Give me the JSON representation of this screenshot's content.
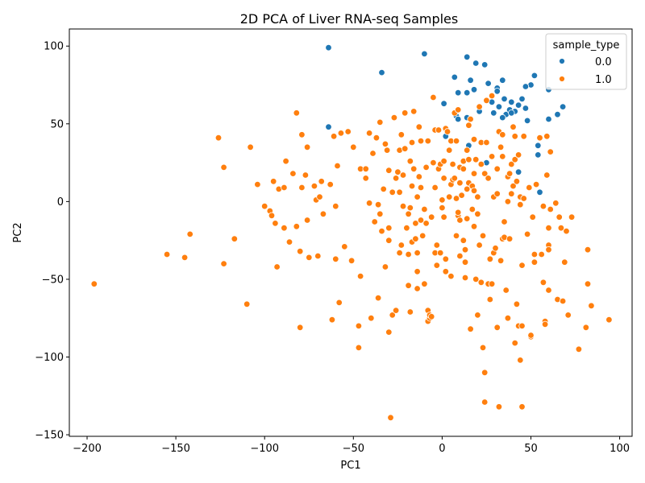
{
  "chart_data": {
    "type": "scatter",
    "title": "2D PCA of Liver RNA-seq Samples",
    "xlabel": "PC1",
    "ylabel": "PC2",
    "xlim": [
      -210,
      107
    ],
    "ylim": [
      -151,
      111
    ],
    "xticks": [
      -200,
      -150,
      -100,
      -50,
      0,
      50,
      100
    ],
    "yticks": [
      -150,
      -100,
      -50,
      0,
      50,
      100
    ],
    "grid": false,
    "legend": {
      "title": "sample_type",
      "placement": "top-right",
      "entries": [
        "0.0",
        "1.0"
      ]
    },
    "series": [
      {
        "name": "0.0",
        "color": "#1f77b4",
        "points": [
          [
            -64,
            99
          ],
          [
            -10,
            95
          ],
          [
            14,
            93
          ],
          [
            19,
            89
          ],
          [
            24,
            88
          ],
          [
            -34,
            83
          ],
          [
            52,
            81
          ],
          [
            16,
            78
          ],
          [
            34,
            78
          ],
          [
            7,
            80
          ],
          [
            50,
            75
          ],
          [
            60,
            72
          ],
          [
            26,
            76
          ],
          [
            31,
            73
          ],
          [
            47,
            74
          ],
          [
            14,
            70
          ],
          [
            18,
            72
          ],
          [
            9,
            70
          ],
          [
            31,
            71
          ],
          [
            45,
            66
          ],
          [
            35,
            66
          ],
          [
            39,
            64
          ],
          [
            28,
            64
          ],
          [
            68,
            61
          ],
          [
            1,
            63
          ],
          [
            43,
            62
          ],
          [
            47,
            60
          ],
          [
            32,
            61
          ],
          [
            29,
            57
          ],
          [
            36,
            56
          ],
          [
            38,
            59
          ],
          [
            41,
            58
          ],
          [
            39,
            57
          ],
          [
            21,
            58
          ],
          [
            8,
            55
          ],
          [
            65,
            56
          ],
          [
            9,
            53
          ],
          [
            14,
            54
          ],
          [
            34,
            54
          ],
          [
            48,
            52
          ],
          [
            60,
            53
          ],
          [
            -64,
            48
          ],
          [
            2,
            42
          ],
          [
            54,
            36
          ],
          [
            15,
            36
          ],
          [
            54,
            30
          ],
          [
            25,
            25
          ],
          [
            43,
            19
          ],
          [
            55,
            6
          ]
        ]
      },
      {
        "name": "1.0",
        "color": "#ff7f0e",
        "points": [
          [
            -196,
            -53
          ],
          [
            -155,
            -34
          ],
          [
            -145,
            -36
          ],
          [
            -142,
            -21
          ],
          [
            -126,
            41
          ],
          [
            -123,
            22
          ],
          [
            -123,
            -40
          ],
          [
            -117,
            -24
          ],
          [
            -110,
            -66
          ],
          [
            -108,
            35
          ],
          [
            -104,
            11
          ],
          [
            -100,
            -3
          ],
          [
            -97,
            -6
          ],
          [
            -96,
            -9
          ],
          [
            -95,
            13
          ],
          [
            -94,
            -14
          ],
          [
            -93,
            -42
          ],
          [
            -92,
            8
          ],
          [
            -89,
            9
          ],
          [
            -89,
            -17
          ],
          [
            -88,
            26
          ],
          [
            -86,
            -26
          ],
          [
            -84,
            18
          ],
          [
            -82,
            57
          ],
          [
            -82,
            -16
          ],
          [
            -80,
            -32
          ],
          [
            -80,
            -81
          ],
          [
            -79,
            43
          ],
          [
            -79,
            9
          ],
          [
            -77,
            17
          ],
          [
            -76,
            -12
          ],
          [
            -76,
            35
          ],
          [
            -75,
            -36
          ],
          [
            -72,
            10
          ],
          [
            -71,
            1
          ],
          [
            -70,
            -35
          ],
          [
            -69,
            3
          ],
          [
            -68,
            13
          ],
          [
            -67,
            -8
          ],
          [
            -63,
            11
          ],
          [
            -62,
            -76
          ],
          [
            -61,
            42
          ],
          [
            -60,
            -37
          ],
          [
            -60,
            -3
          ],
          [
            -59,
            23
          ],
          [
            -58,
            -65
          ],
          [
            -57,
            44
          ],
          [
            -55,
            -29
          ],
          [
            -53,
            45
          ],
          [
            -51,
            -38
          ],
          [
            -50,
            35
          ],
          [
            -47,
            -94
          ],
          [
            -47,
            -80
          ],
          [
            -46,
            21
          ],
          [
            -46,
            -48
          ],
          [
            -43,
            21
          ],
          [
            -43,
            15
          ],
          [
            -41,
            -1
          ],
          [
            -41,
            44
          ],
          [
            -40,
            -75
          ],
          [
            -39,
            31
          ],
          [
            -38,
            -13
          ],
          [
            -37,
            41
          ],
          [
            -36,
            -62
          ],
          [
            -36,
            -2
          ],
          [
            -35,
            51
          ],
          [
            -35,
            -8
          ],
          [
            -34,
            -19
          ],
          [
            -33,
            8
          ],
          [
            -32,
            37
          ],
          [
            -32,
            -42
          ],
          [
            -31,
            33
          ],
          [
            -30,
            20
          ],
          [
            -30,
            -25
          ],
          [
            -30,
            -17
          ],
          [
            -30,
            -84
          ],
          [
            -29,
            -139
          ],
          [
            -28,
            -73
          ],
          [
            -28,
            6
          ],
          [
            -27,
            54
          ],
          [
            -26,
            15
          ],
          [
            -26,
            -70
          ],
          [
            -25,
            19
          ],
          [
            -24,
            33
          ],
          [
            -24,
            6
          ],
          [
            -24,
            -33
          ],
          [
            -23,
            43
          ],
          [
            -23,
            -28
          ],
          [
            -22,
            17
          ],
          [
            -22,
            -3
          ],
          [
            -21,
            57
          ],
          [
            -21,
            34
          ],
          [
            -20,
            -17
          ],
          [
            -19,
            -34
          ],
          [
            -19,
            -8
          ],
          [
            -19,
            -54
          ],
          [
            -18,
            -4
          ],
          [
            -18,
            26
          ],
          [
            -18,
            -71
          ],
          [
            -17,
            -26
          ],
          [
            -17,
            38
          ],
          [
            -17,
            10
          ],
          [
            -16,
            21
          ],
          [
            -16,
            58
          ],
          [
            -15,
            -14
          ],
          [
            -15,
            -24
          ],
          [
            -14,
            3
          ],
          [
            -14,
            -33
          ],
          [
            -14,
            -45
          ],
          [
            -14,
            -56
          ],
          [
            -13,
            16
          ],
          [
            -13,
            48
          ],
          [
            -12,
            39
          ],
          [
            -12,
            -12
          ],
          [
            -12,
            9
          ],
          [
            -11,
            -22
          ],
          [
            -10,
            -53
          ],
          [
            -10,
            -5
          ],
          [
            -9,
            -14
          ],
          [
            -9,
            22
          ],
          [
            -8,
            -70
          ],
          [
            -8,
            39
          ],
          [
            -8,
            -77
          ],
          [
            -7,
            -75
          ],
          [
            -7,
            -73
          ],
          [
            -6,
            -74
          ],
          [
            -6,
            -10
          ],
          [
            -5,
            67
          ],
          [
            -5,
            25
          ],
          [
            -4,
            9
          ],
          [
            -4,
            46
          ],
          [
            -4,
            -33
          ],
          [
            -3,
            -41
          ],
          [
            -3,
            -28
          ],
          [
            -2,
            21
          ],
          [
            -2,
            46
          ],
          [
            -1,
            -33
          ],
          [
            -1,
            24
          ],
          [
            0,
            -4
          ],
          [
            0,
            1
          ],
          [
            1,
            -10
          ],
          [
            1,
            26
          ],
          [
            1,
            15
          ],
          [
            2,
            -45
          ],
          [
            2,
            -37
          ],
          [
            2,
            47
          ],
          [
            3,
            45
          ],
          [
            4,
            3
          ],
          [
            4,
            33
          ],
          [
            5,
            39
          ],
          [
            5,
            -48
          ],
          [
            5,
            11
          ],
          [
            6,
            24
          ],
          [
            6,
            14
          ],
          [
            7,
            15
          ],
          [
            7,
            57
          ],
          [
            8,
            -22
          ],
          [
            8,
            39
          ],
          [
            8,
            2
          ],
          [
            9,
            -9
          ],
          [
            9,
            -7
          ],
          [
            9,
            59
          ],
          [
            10,
            -35
          ],
          [
            10,
            12
          ],
          [
            10,
            22
          ],
          [
            10,
            -12
          ],
          [
            11,
            4
          ],
          [
            12,
            -25
          ],
          [
            12,
            26
          ],
          [
            12,
            21
          ],
          [
            13,
            -31
          ],
          [
            13,
            -49
          ],
          [
            13,
            -39
          ],
          [
            14,
            33
          ],
          [
            14,
            8
          ],
          [
            14,
            -11
          ],
          [
            15,
            12
          ],
          [
            15,
            49
          ],
          [
            15,
            27
          ],
          [
            16,
            53
          ],
          [
            16,
            -82
          ],
          [
            17,
            10
          ],
          [
            17,
            -5
          ],
          [
            18,
            40
          ],
          [
            18,
            7
          ],
          [
            18,
            -16
          ],
          [
            18,
            18
          ],
          [
            19,
            27
          ],
          [
            19,
            -50
          ],
          [
            20,
            -73
          ],
          [
            20,
            -8
          ],
          [
            20,
            3
          ],
          [
            21,
            61
          ],
          [
            21,
            -28
          ],
          [
            22,
            24
          ],
          [
            22,
            -52
          ],
          [
            22,
            38
          ],
          [
            23,
            -94
          ],
          [
            23,
            -22
          ],
          [
            24,
            -110
          ],
          [
            24,
            18
          ],
          [
            24,
            -129
          ],
          [
            25,
            38
          ],
          [
            25,
            65
          ],
          [
            26,
            15
          ],
          [
            26,
            -53
          ],
          [
            27,
            -37
          ],
          [
            27,
            -63
          ],
          [
            28,
            68
          ],
          [
            28,
            29
          ],
          [
            28,
            -53
          ],
          [
            29,
            3
          ],
          [
            29,
            -33
          ],
          [
            30,
            -30
          ],
          [
            31,
            21
          ],
          [
            31,
            -81
          ],
          [
            31,
            5
          ],
          [
            32,
            -132
          ],
          [
            32,
            45
          ],
          [
            33,
            -38
          ],
          [
            33,
            35
          ],
          [
            34,
            29
          ],
          [
            34,
            43
          ],
          [
            34,
            -24
          ],
          [
            35,
            -13
          ],
          [
            35,
            -23
          ],
          [
            36,
            -57
          ],
          [
            37,
            0
          ],
          [
            37,
            16
          ],
          [
            37,
            -75
          ],
          [
            38,
            18
          ],
          [
            38,
            -24
          ],
          [
            39,
            5
          ],
          [
            39,
            24
          ],
          [
            40,
            10
          ],
          [
            40,
            48
          ],
          [
            41,
            -91
          ],
          [
            41,
            42
          ],
          [
            41,
            27
          ],
          [
            42,
            13
          ],
          [
            42,
            -66
          ],
          [
            43,
            30
          ],
          [
            43,
            -80
          ],
          [
            44,
            -2
          ],
          [
            44,
            -102
          ],
          [
            44,
            3
          ],
          [
            45,
            -41
          ],
          [
            45,
            -132
          ],
          [
            45,
            -80
          ],
          [
            46,
            42
          ],
          [
            46,
            2
          ],
          [
            48,
            -21
          ],
          [
            49,
            9
          ],
          [
            50,
            -87
          ],
          [
            50,
            -86
          ],
          [
            51,
            -10
          ],
          [
            52,
            -39
          ],
          [
            52,
            -34
          ],
          [
            53,
            11
          ],
          [
            55,
            41
          ],
          [
            56,
            -34
          ],
          [
            57,
            -52
          ],
          [
            57,
            -3
          ],
          [
            58,
            -77
          ],
          [
            58,
            -79
          ],
          [
            59,
            17
          ],
          [
            59,
            42
          ],
          [
            60,
            -17
          ],
          [
            60,
            -28
          ],
          [
            60,
            -31
          ],
          [
            60,
            -57
          ],
          [
            61,
            -5
          ],
          [
            61,
            32
          ],
          [
            64,
            -1
          ],
          [
            65,
            -63
          ],
          [
            66,
            -10
          ],
          [
            67,
            -17
          ],
          [
            68,
            -64
          ],
          [
            69,
            -39
          ],
          [
            70,
            -19
          ],
          [
            71,
            -73
          ],
          [
            73,
            -10
          ],
          [
            77,
            -95
          ],
          [
            81,
            -81
          ],
          [
            82,
            -31
          ],
          [
            82,
            -53
          ],
          [
            84,
            -67
          ],
          [
            94,
            -76
          ]
        ]
      }
    ]
  }
}
